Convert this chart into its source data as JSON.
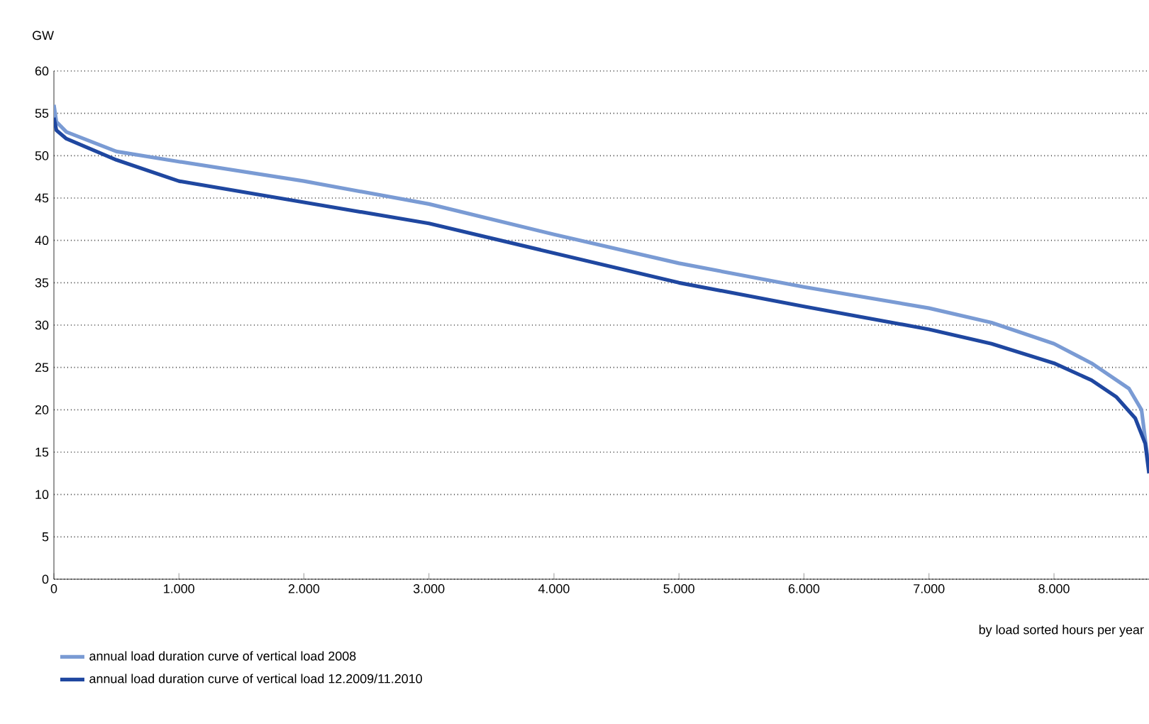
{
  "chart_data": {
    "type": "line",
    "ylabel": "GW",
    "xlabel": "by load sorted hours per year",
    "xlim": [
      0,
      8760
    ],
    "ylim": [
      0,
      60
    ],
    "xticks": [
      0,
      {
        "value": 1000,
        "label": "1.000"
      },
      {
        "value": 2000,
        "label": "2.000"
      },
      {
        "value": 3000,
        "label": "3.000"
      },
      {
        "value": 4000,
        "label": "4.000"
      },
      {
        "value": 5000,
        "label": "5.000"
      },
      {
        "value": 6000,
        "label": "6.000"
      },
      {
        "value": 7000,
        "label": "7.000"
      },
      {
        "value": 8000,
        "label": "8.000"
      }
    ],
    "yticks": [
      0,
      5,
      10,
      15,
      20,
      25,
      30,
      35,
      40,
      45,
      50,
      55,
      60
    ],
    "grid": "y",
    "legend": "bottom",
    "marker": "none",
    "line_style": "solid",
    "series": [
      {
        "name": "annual load duration curve of vertical load 2008",
        "color": "#7a9bd4",
        "x": [
          0,
          20,
          100,
          500,
          1000,
          2000,
          3000,
          4000,
          5000,
          6000,
          7000,
          7500,
          8000,
          8300,
          8600,
          8700,
          8760
        ],
        "values": [
          56,
          54,
          52.8,
          50.5,
          49.3,
          47,
          44.3,
          40.7,
          37.3,
          34.5,
          32,
          30.3,
          27.8,
          25.5,
          22.5,
          20,
          13
        ]
      },
      {
        "name": "annual load duration curve of vertical load 12.2009/11.2010",
        "color": "#1f47a0",
        "x": [
          0,
          20,
          100,
          500,
          1000,
          2000,
          3000,
          4000,
          5000,
          6000,
          7000,
          7500,
          8000,
          8300,
          8500,
          8650,
          8730,
          8760
        ],
        "values": [
          54.5,
          53,
          52,
          49.5,
          47,
          44.5,
          42,
          38.5,
          35,
          32.2,
          29.5,
          27.8,
          25.5,
          23.5,
          21.5,
          19,
          16,
          12.5
        ]
      }
    ]
  }
}
